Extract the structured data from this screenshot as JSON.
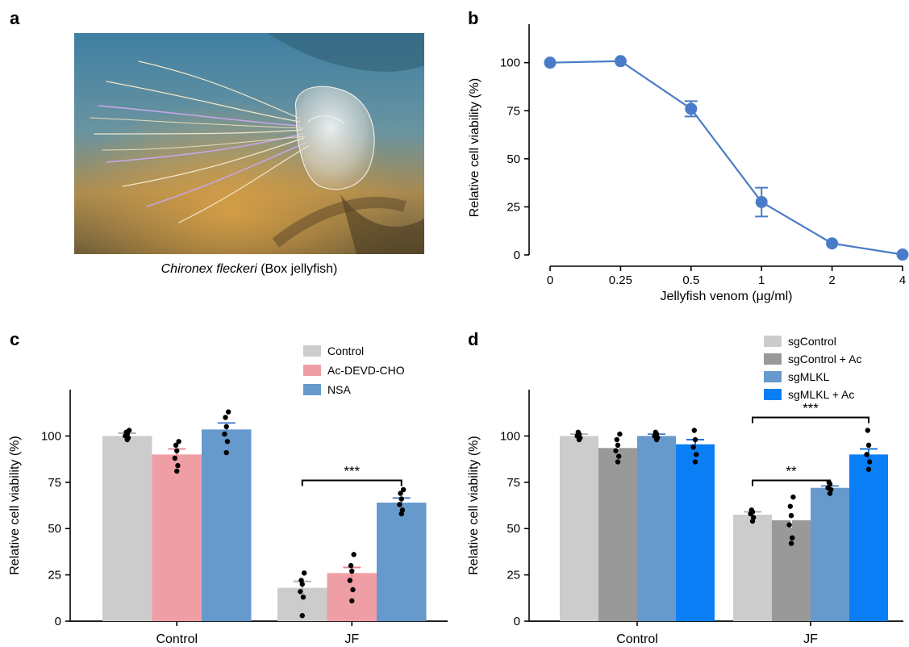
{
  "panel_letters": {
    "a": "a",
    "b": "b",
    "c": "c",
    "d": "d"
  },
  "photo": {
    "caption_species": "Chironex fleckeri",
    "caption_common": " (Box jellyfish)",
    "colors": {
      "water_top": "#3f7fa3",
      "water_mid": "#5f8f9a",
      "sand": "#b8863a",
      "tentacle": "#b99ae0"
    }
  },
  "chart_data": [
    {
      "id": "b",
      "type": "line",
      "x": [
        "0",
        "0.25",
        "0.5",
        "1",
        "2",
        "4"
      ],
      "series": [
        {
          "values": [
            100,
            100.8,
            76,
            27.5,
            6,
            0.2
          ],
          "errors": [
            0,
            0,
            4,
            7.5,
            0,
            0
          ]
        }
      ],
      "ylabel": "Relative cell viability (%)",
      "xlabel": "Jellyfish venom (μg/ml)",
      "ylim": [
        0,
        120
      ],
      "yticks": [
        "0",
        "25",
        "50",
        "75",
        "100"
      ],
      "color": "#4a7bc8",
      "grid": false
    },
    {
      "id": "c",
      "type": "bar",
      "categories": [
        "Control",
        "JF"
      ],
      "series": [
        {
          "name": "Control",
          "color": "#cccccc",
          "errcolor": "#aaaaaa",
          "values": [
            100,
            18
          ],
          "errors": [
            1.5,
            3.5
          ],
          "points": [
            [
              98,
              99,
              100,
              101,
              102,
              103
            ],
            [
              3,
              13,
              16,
              20,
              22,
              26
            ]
          ]
        },
        {
          "name": "Ac-DEVD-CHO",
          "color": "#f09ea6",
          "errcolor": "#e8838e",
          "values": [
            90,
            26
          ],
          "errors": [
            3,
            3
          ],
          "points": [
            [
              81,
              84,
              88,
              92,
              95,
              97
            ],
            [
              11,
              17,
              22,
              27,
              30,
              36
            ]
          ]
        },
        {
          "name": "NSA",
          "color": "#6699cc",
          "errcolor": "#4a7bc8",
          "values": [
            103.5,
            64
          ],
          "errors": [
            3.5,
            2.5
          ],
          "points": [
            [
              91,
              97,
              101,
              105,
              110,
              113
            ],
            [
              58,
              60,
              63,
              66,
              69,
              71
            ]
          ]
        }
      ],
      "significance": [
        {
          "groups": [
            0,
            2
          ],
          "category": 1,
          "label": "***",
          "y": 76
        }
      ],
      "ylabel": "Relative cell viability (%)",
      "ylim": [
        0,
        125
      ],
      "yticks": [
        "0",
        "25",
        "50",
        "75",
        "100"
      ],
      "legend_position": "top-right",
      "grid": false
    },
    {
      "id": "d",
      "type": "bar",
      "categories": [
        "Control",
        "JF"
      ],
      "series": [
        {
          "name": "sgControl",
          "color": "#cccccc",
          "errcolor": "#aaaaaa",
          "values": [
            100,
            57.5
          ],
          "errors": [
            1,
            1.5
          ],
          "points": [
            [
              98,
              99,
              100,
              101,
              102
            ],
            [
              54,
              56,
              58,
              59,
              60
            ]
          ]
        },
        {
          "name": "sgControl + Ac",
          "color": "#999999",
          "errcolor": "#ffffff",
          "values": [
            93.5,
            54.5
          ],
          "errors": [
            2.5,
            4
          ],
          "points": [
            [
              86,
              89,
              92,
              95,
              98,
              101
            ],
            [
              42,
              45,
              52,
              57,
              62,
              67
            ]
          ]
        },
        {
          "name": "sgMLKL",
          "color": "#6699cc",
          "errcolor": "#4a7bc8",
          "values": [
            100,
            72
          ],
          "errors": [
            1,
            1
          ],
          "points": [
            [
              98,
              99,
              100,
              101,
              102
            ],
            [
              69,
              71,
              72,
              74,
              75
            ]
          ]
        },
        {
          "name": "sgMLKL + Ac",
          "color": "#0a7ff5",
          "errcolor": "#0060d0",
          "values": [
            95.5,
            90
          ],
          "errors": [
            2.5,
            3
          ],
          "points": [
            [
              86,
              90,
              94,
              98,
              103
            ],
            [
              82,
              86,
              90,
              95,
              103
            ]
          ]
        }
      ],
      "significance": [
        {
          "groups": [
            0,
            2
          ],
          "category": 1,
          "label": "**",
          "y": 76
        },
        {
          "groups": [
            0,
            3
          ],
          "category": 1,
          "label": "***",
          "y": 110
        }
      ],
      "ylabel": "Relative cell viability (%)",
      "ylim": [
        0,
        125
      ],
      "yticks": [
        "0",
        "25",
        "50",
        "75",
        "100"
      ],
      "legend_position": "top-right",
      "grid": false
    }
  ]
}
